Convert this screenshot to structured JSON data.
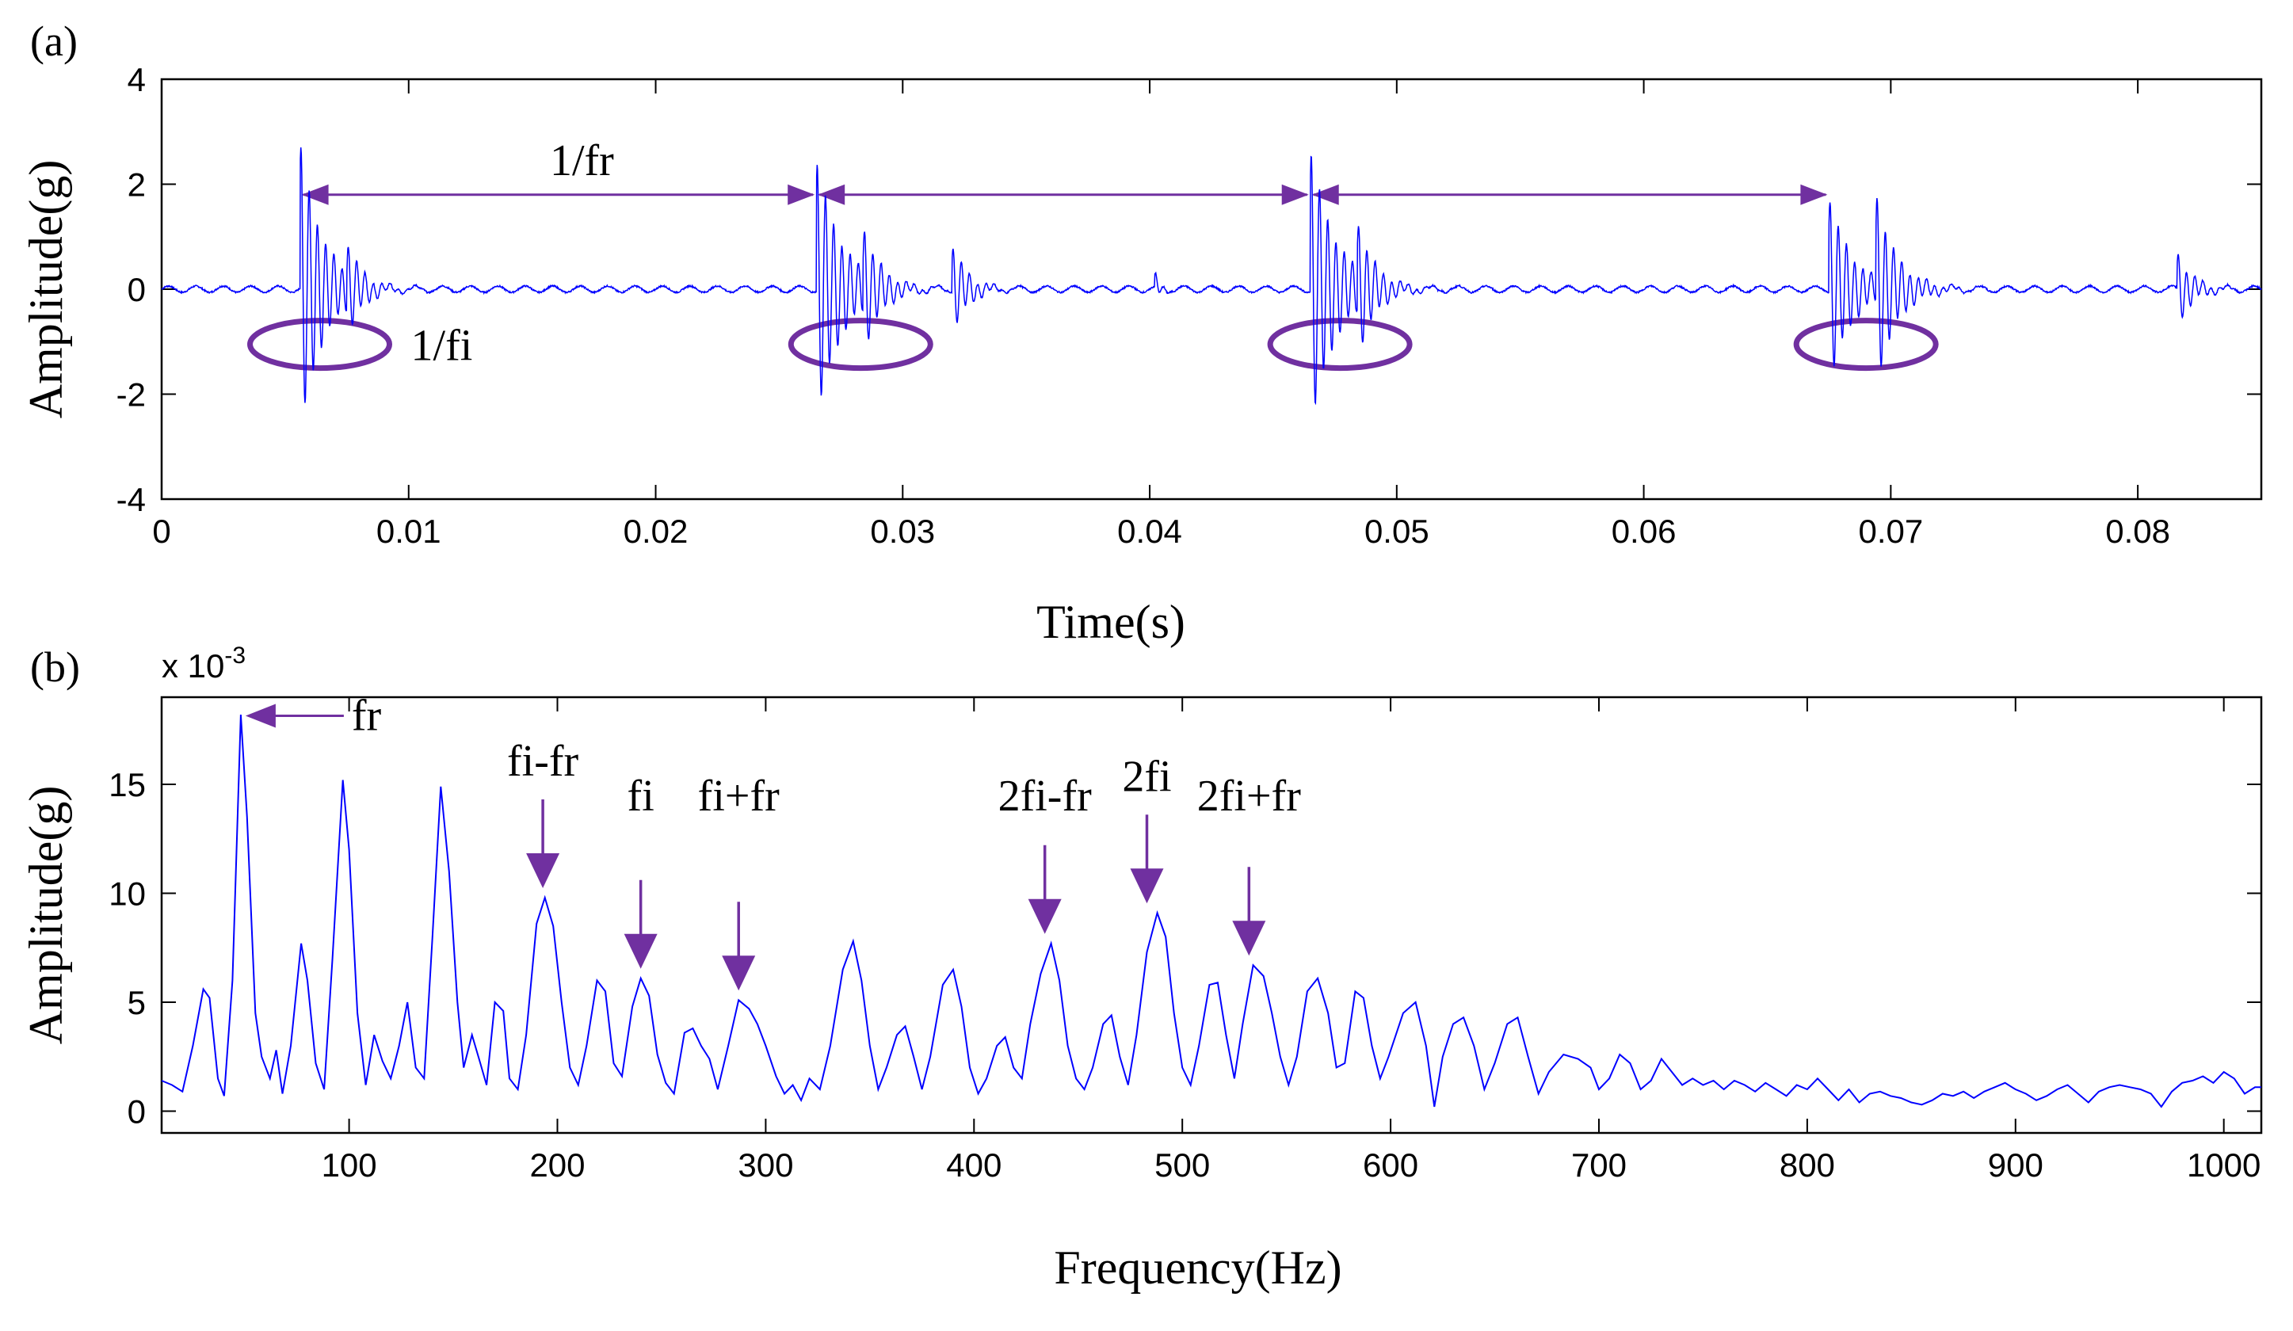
{
  "chart_data": [
    {
      "panel": "(a)",
      "type": "line",
      "xlabel": "Time(s)",
      "ylabel": "Amplitude(g)",
      "xlim": [
        0,
        0.085
      ],
      "ylim": [
        -4,
        4
      ],
      "xticks": [
        0,
        0.01,
        0.02,
        0.03,
        0.04,
        0.05,
        0.06,
        0.07,
        0.08
      ],
      "xtick_labels": [
        "0",
        "0.01",
        "0.02",
        "0.03",
        "0.04",
        "0.05",
        "0.06",
        "0.07",
        "0.08"
      ],
      "yticks": [
        -4,
        -2,
        0,
        2,
        4
      ],
      "ytick_labels": [
        "-4",
        "-2",
        "0",
        "2",
        "4"
      ],
      "line_color": "#0000ff",
      "impulses": [
        {
          "t": 0.0056,
          "amp": 2.8,
          "decay": 0.0009
        },
        {
          "t": 0.0075,
          "amp": 1.0,
          "decay": 0.0006
        },
        {
          "t": 0.0265,
          "amp": 2.5,
          "decay": 0.001
        },
        {
          "t": 0.0284,
          "amp": 1.3,
          "decay": 0.0007
        },
        {
          "t": 0.032,
          "amp": 0.9,
          "decay": 0.0006
        },
        {
          "t": 0.0402,
          "amp": 0.3,
          "decay": 0.0002
        },
        {
          "t": 0.0465,
          "amp": 2.7,
          "decay": 0.001
        },
        {
          "t": 0.0484,
          "amp": 1.4,
          "decay": 0.0007
        },
        {
          "t": 0.0675,
          "amp": 1.8,
          "decay": 0.0009
        },
        {
          "t": 0.0694,
          "amp": 1.9,
          "decay": 0.0008
        },
        {
          "t": 0.0816,
          "amp": 0.7,
          "decay": 0.0006
        }
      ],
      "carrier_hz": 3000,
      "annotations": [
        {
          "text": "1/fr",
          "kind": "period-arrows",
          "points": [
            0.0056,
            0.0265,
            0.0465,
            0.0675
          ],
          "y": 1.8
        },
        {
          "text": "1/fi",
          "kind": "ellipses",
          "centers": [
            0.0064,
            0.0283,
            0.0477,
            0.069
          ],
          "y": -1.05
        }
      ]
    },
    {
      "panel": "(b)",
      "type": "line",
      "xlabel": "Frequency(Hz)",
      "ylabel": "Amplitude(g)",
      "y_multiplier": "x 10",
      "y_multiplier_exp": "-3",
      "xlim": [
        10,
        1018
      ],
      "ylim": [
        -1,
        19
      ],
      "xticks": [
        100,
        200,
        300,
        400,
        500,
        600,
        700,
        800,
        900,
        1000
      ],
      "xtick_labels": [
        "100",
        "200",
        "300",
        "400",
        "500",
        "600",
        "700",
        "800",
        "900",
        "1000"
      ],
      "yticks": [
        0,
        5,
        10,
        15
      ],
      "ytick_labels": [
        "0",
        "5",
        "10",
        "15"
      ],
      "line_color": "#0000ff",
      "spectrum": [
        [
          10,
          1.4
        ],
        [
          15,
          1.2
        ],
        [
          20,
          0.9
        ],
        [
          25,
          3.0
        ],
        [
          30,
          5.6
        ],
        [
          33,
          5.2
        ],
        [
          37,
          1.5
        ],
        [
          40,
          0.7
        ],
        [
          44,
          6.0
        ],
        [
          48,
          18.2
        ],
        [
          51,
          13.5
        ],
        [
          55,
          4.5
        ],
        [
          58,
          2.5
        ],
        [
          62,
          1.5
        ],
        [
          65,
          2.8
        ],
        [
          68,
          0.8
        ],
        [
          72,
          3.0
        ],
        [
          77,
          7.7
        ],
        [
          80,
          6.0
        ],
        [
          84,
          2.2
        ],
        [
          88,
          1.0
        ],
        [
          92,
          7.0
        ],
        [
          97,
          15.2
        ],
        [
          100,
          12.0
        ],
        [
          104,
          4.5
        ],
        [
          108,
          1.2
        ],
        [
          112,
          3.5
        ],
        [
          116,
          2.3
        ],
        [
          120,
          1.5
        ],
        [
          124,
          3.0
        ],
        [
          128,
          5.0
        ],
        [
          132,
          2.0
        ],
        [
          136,
          1.5
        ],
        [
          140,
          8.0
        ],
        [
          144,
          14.9
        ],
        [
          148,
          11.0
        ],
        [
          152,
          5.0
        ],
        [
          155,
          2.0
        ],
        [
          159,
          3.5
        ],
        [
          163,
          2.2
        ],
        [
          166,
          1.2
        ],
        [
          170,
          5.0
        ],
        [
          174,
          4.6
        ],
        [
          177,
          1.5
        ],
        [
          181,
          1.0
        ],
        [
          185,
          3.5
        ],
        [
          190,
          8.6
        ],
        [
          194,
          9.8
        ],
        [
          198,
          8.5
        ],
        [
          202,
          5.0
        ],
        [
          206,
          2.0
        ],
        [
          210,
          1.2
        ],
        [
          214,
          3.0
        ],
        [
          219,
          6.0
        ],
        [
          223,
          5.5
        ],
        [
          227,
          2.2
        ],
        [
          231,
          1.6
        ],
        [
          236,
          4.8
        ],
        [
          240,
          6.1
        ],
        [
          244,
          5.3
        ],
        [
          248,
          2.6
        ],
        [
          252,
          1.3
        ],
        [
          256,
          0.8
        ],
        [
          261,
          3.6
        ],
        [
          265,
          3.8
        ],
        [
          269,
          3.0
        ],
        [
          273,
          2.4
        ],
        [
          277,
          1.0
        ],
        [
          282,
          3.0
        ],
        [
          287,
          5.1
        ],
        [
          292,
          4.7
        ],
        [
          296,
          4.0
        ],
        [
          300,
          3.0
        ],
        [
          305,
          1.6
        ],
        [
          309,
          0.8
        ],
        [
          313,
          1.2
        ],
        [
          317,
          0.5
        ],
        [
          321,
          1.5
        ],
        [
          326,
          1.0
        ],
        [
          331,
          3.0
        ],
        [
          337,
          6.5
        ],
        [
          342,
          7.8
        ],
        [
          346,
          6.0
        ],
        [
          350,
          3.0
        ],
        [
          354,
          1.0
        ],
        [
          358,
          2.0
        ],
        [
          363,
          3.5
        ],
        [
          367,
          3.9
        ],
        [
          371,
          2.5
        ],
        [
          375,
          1.0
        ],
        [
          379,
          2.5
        ],
        [
          385,
          5.8
        ],
        [
          390,
          6.5
        ],
        [
          394,
          4.8
        ],
        [
          398,
          2.0
        ],
        [
          402,
          0.8
        ],
        [
          406,
          1.5
        ],
        [
          411,
          3.0
        ],
        [
          415,
          3.4
        ],
        [
          419,
          2.0
        ],
        [
          423,
          1.5
        ],
        [
          427,
          4.0
        ],
        [
          432,
          6.3
        ],
        [
          437,
          7.7
        ],
        [
          441,
          6.0
        ],
        [
          445,
          3.0
        ],
        [
          449,
          1.5
        ],
        [
          453,
          1.0
        ],
        [
          457,
          2.0
        ],
        [
          462,
          4.0
        ],
        [
          466,
          4.4
        ],
        [
          470,
          2.5
        ],
        [
          474,
          1.2
        ],
        [
          478,
          3.5
        ],
        [
          483,
          7.3
        ],
        [
          488,
          9.1
        ],
        [
          492,
          8.0
        ],
        [
          496,
          4.5
        ],
        [
          500,
          2.0
        ],
        [
          504,
          1.2
        ],
        [
          508,
          3.0
        ],
        [
          513,
          5.8
        ],
        [
          517,
          5.9
        ],
        [
          521,
          3.5
        ],
        [
          525,
          1.5
        ],
        [
          529,
          4.0
        ],
        [
          534,
          6.7
        ],
        [
          539,
          6.2
        ],
        [
          543,
          4.5
        ],
        [
          547,
          2.5
        ],
        [
          551,
          1.2
        ],
        [
          555,
          2.5
        ],
        [
          560,
          5.5
        ],
        [
          565,
          6.1
        ],
        [
          570,
          4.5
        ],
        [
          574,
          2.0
        ],
        [
          578,
          2.2
        ],
        [
          583,
          5.5
        ],
        [
          587,
          5.2
        ],
        [
          591,
          3.0
        ],
        [
          595,
          1.5
        ],
        [
          599,
          2.5
        ],
        [
          606,
          4.5
        ],
        [
          612,
          5.0
        ],
        [
          617,
          3.0
        ],
        [
          621,
          0.2
        ],
        [
          625,
          2.5
        ],
        [
          630,
          4.0
        ],
        [
          635,
          4.3
        ],
        [
          640,
          3.0
        ],
        [
          645,
          1.0
        ],
        [
          650,
          2.2
        ],
        [
          656,
          4.0
        ],
        [
          661,
          4.3
        ],
        [
          666,
          2.5
        ],
        [
          671,
          0.8
        ],
        [
          676,
          1.8
        ],
        [
          683,
          2.6
        ],
        [
          690,
          2.4
        ],
        [
          696,
          2.0
        ],
        [
          700,
          1.0
        ],
        [
          705,
          1.5
        ],
        [
          710,
          2.6
        ],
        [
          715,
          2.2
        ],
        [
          720,
          1.0
        ],
        [
          725,
          1.4
        ],
        [
          730,
          2.4
        ],
        [
          735,
          1.8
        ],
        [
          740,
          1.2
        ],
        [
          745,
          1.5
        ],
        [
          750,
          1.2
        ],
        [
          755,
          1.4
        ],
        [
          760,
          1.0
        ],
        [
          765,
          1.4
        ],
        [
          770,
          1.2
        ],
        [
          775,
          0.9
        ],
        [
          780,
          1.3
        ],
        [
          785,
          1.0
        ],
        [
          790,
          0.7
        ],
        [
          795,
          1.2
        ],
        [
          800,
          1.0
        ],
        [
          805,
          1.5
        ],
        [
          810,
          1.0
        ],
        [
          815,
          0.5
        ],
        [
          820,
          1.0
        ],
        [
          825,
          0.4
        ],
        [
          830,
          0.8
        ],
        [
          835,
          0.9
        ],
        [
          840,
          0.7
        ],
        [
          845,
          0.6
        ],
        [
          850,
          0.4
        ],
        [
          855,
          0.3
        ],
        [
          860,
          0.5
        ],
        [
          865,
          0.8
        ],
        [
          870,
          0.7
        ],
        [
          875,
          0.9
        ],
        [
          880,
          0.6
        ],
        [
          885,
          0.9
        ],
        [
          890,
          1.1
        ],
        [
          895,
          1.3
        ],
        [
          900,
          1.0
        ],
        [
          905,
          0.8
        ],
        [
          910,
          0.5
        ],
        [
          915,
          0.7
        ],
        [
          920,
          1.0
        ],
        [
          925,
          1.2
        ],
        [
          930,
          0.8
        ],
        [
          935,
          0.4
        ],
        [
          940,
          0.9
        ],
        [
          945,
          1.1
        ],
        [
          950,
          1.2
        ],
        [
          955,
          1.1
        ],
        [
          960,
          1.0
        ],
        [
          965,
          0.8
        ],
        [
          970,
          0.2
        ],
        [
          975,
          0.9
        ],
        [
          980,
          1.3
        ],
        [
          985,
          1.4
        ],
        [
          990,
          1.6
        ],
        [
          995,
          1.3
        ],
        [
          1000,
          1.8
        ],
        [
          1005,
          1.5
        ],
        [
          1010,
          0.8
        ],
        [
          1015,
          1.1
        ],
        [
          1018,
          1.1
        ]
      ],
      "annotations": [
        {
          "text": "fr",
          "kind": "left-arrow",
          "x": 48,
          "y": 18.0
        },
        {
          "text": "fi-fr",
          "kind": "down-arrow",
          "x": 193,
          "y": 9.8
        },
        {
          "text": "fi",
          "kind": "down-arrow",
          "x": 240,
          "y": 6.1
        },
        {
          "text": "fi+fr",
          "kind": "down-arrow",
          "x": 287,
          "y": 5.1
        },
        {
          "text": "2fi-fr",
          "kind": "down-arrow",
          "x": 434,
          "y": 7.7
        },
        {
          "text": "2fi",
          "kind": "down-arrow",
          "x": 483,
          "y": 9.1
        },
        {
          "text": "2fi+fr",
          "kind": "down-arrow",
          "x": 532,
          "y": 6.7
        }
      ]
    }
  ],
  "annotation_color": "#7030a0"
}
